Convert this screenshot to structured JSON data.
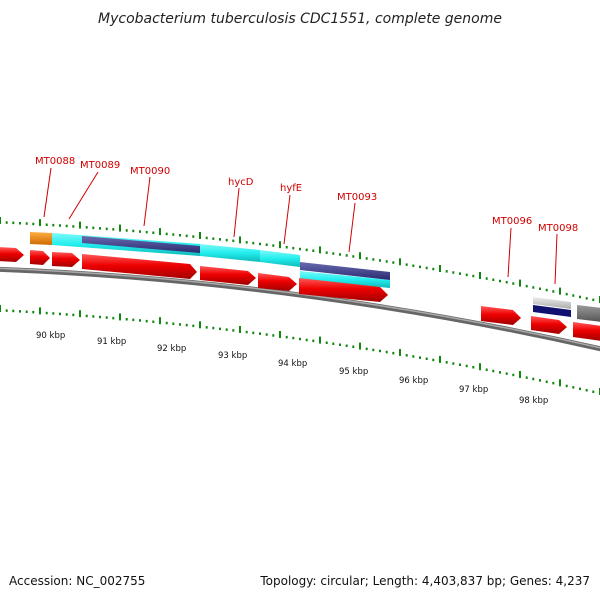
{
  "title": "Mycobacterium tuberculosis CDC1551, complete genome",
  "footer": {
    "accession": "Accession: NC_002755",
    "summary": "Topology: circular; Length: 4,403,837 bp; Genes: 4,237"
  },
  "scale_labels": [
    "90 kbp",
    "91 kbp",
    "92 kbp",
    "93 kbp",
    "94 kbp",
    "95 kbp",
    "96 kbp",
    "97 kbp",
    "98 kbp"
  ],
  "gene_labels": [
    "MT0088",
    "MT0089",
    "MT0090",
    "hycD",
    "hyfE",
    "MT0093",
    "MT0096",
    "MT0098"
  ],
  "colors": {
    "gene_red": "#ee0000",
    "feature_cyan": "#22eeee",
    "feature_navy": "#3a3a8a",
    "feature_orange": "#ee8800",
    "tick_green": "#118811",
    "backbone_gray": "#888888",
    "label_red": "#d00000"
  }
}
